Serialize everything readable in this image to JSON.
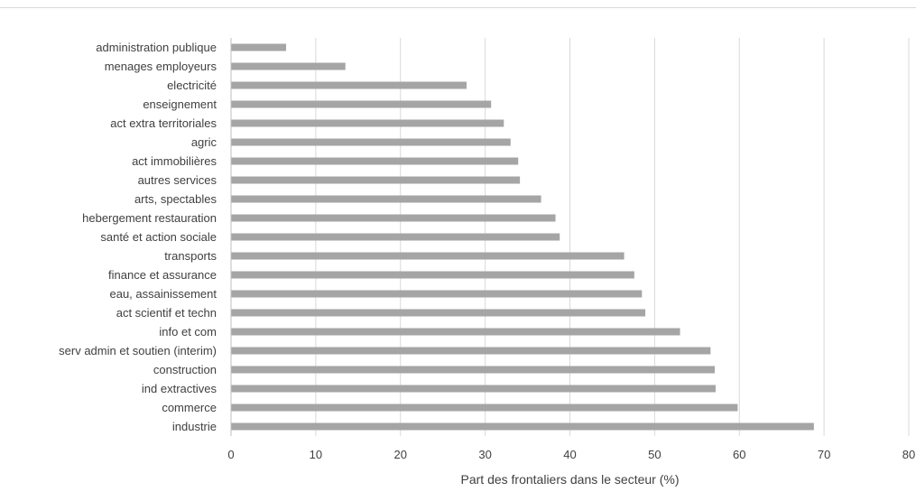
{
  "chart_data": {
    "type": "bar",
    "orientation": "horizontal",
    "categories": [
      "administration publique",
      "menages employeurs",
      "electricité",
      "enseignement",
      "act extra territoriales",
      "agric",
      "act immobilières",
      "autres services",
      "arts, spectables",
      "hebergement restauration",
      "santé et action sociale",
      "transports",
      "finance et assurance",
      "eau, assainissement",
      "act scientif et techn",
      "info et com",
      "serv admin et soutien (interim)",
      "construction",
      "ind extractives",
      "commerce",
      "industrie"
    ],
    "values": [
      6.5,
      13.5,
      27.8,
      30.7,
      32.2,
      33.0,
      33.9,
      34.1,
      36.6,
      38.3,
      38.8,
      46.4,
      47.6,
      48.5,
      48.9,
      53.0,
      56.6,
      57.1,
      57.2,
      59.8,
      68.8
    ],
    "xlabel": "Part des frontaliers dans le secteur (%)",
    "ylabel": "",
    "title": "",
    "xlim": [
      0,
      80
    ],
    "xticks": [
      "0",
      "10",
      "20",
      "30",
      "40",
      "50",
      "60",
      "70",
      "80"
    ],
    "grid": "vertical",
    "legend": "none",
    "bar_color": "#a5a5a5",
    "grid_color": "#d9d9d9",
    "axis_color": "#bfbfbf"
  }
}
